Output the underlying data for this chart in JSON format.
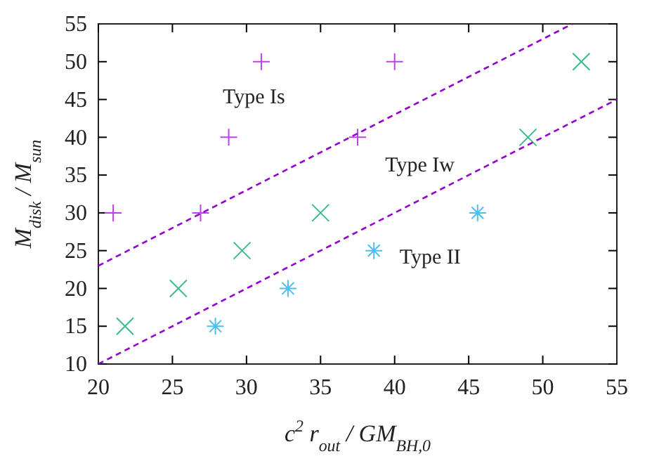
{
  "chart_data": {
    "type": "scatter",
    "xlabel": "c$^{2}$ r$_{out}$ / GM$_{BH,0}$",
    "ylabel": "M$_{disk}$ / M$_{sun}$",
    "xlim": [
      20,
      55
    ],
    "ylim": [
      10,
      55
    ],
    "xticks": [
      20,
      25,
      30,
      35,
      40,
      45,
      50,
      55
    ],
    "yticks": [
      10,
      15,
      20,
      25,
      30,
      35,
      40,
      45,
      50,
      55
    ],
    "grid": false,
    "series": [
      {
        "color": "#c040f0",
        "marker": "cross",
        "x": [
          21.0,
          26.9,
          28.8,
          31.0,
          37.5,
          40.0
        ],
        "values": [
          30,
          30,
          40,
          50,
          40,
          50
        ]
      },
      {
        "color": "#3cba8c",
        "marker": "x",
        "x": [
          21.8,
          25.4,
          29.7,
          35.0,
          49.0,
          52.6
        ],
        "values": [
          15,
          20,
          25,
          30,
          40,
          50
        ]
      },
      {
        "color": "#4cbff0",
        "x": [
          27.9,
          32.8,
          38.6,
          45.6
        ],
        "values": [
          15,
          20,
          25,
          30
        ]
      },
      {
        "type": "line",
        "color": "#9400d3",
        "line_style": "dashed",
        "marker": "none",
        "x": [
          20,
          52
        ],
        "values": [
          23,
          55
        ]
      },
      {
        "type": "line",
        "color": "#9400d3",
        "line_style": "dashed",
        "marker": "none",
        "x": [
          20,
          55
        ],
        "values": [
          10,
          45
        ]
      }
    ],
    "annotations": [
      "Type Is",
      "Type Iw",
      "Type II"
    ]
  }
}
